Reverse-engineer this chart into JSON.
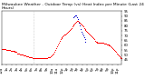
{
  "title": "Milwaukee Weather - Outdoor Temp (vs) Heat Index per Minute (Last 24 Hours)",
  "background_color": "#ffffff",
  "plot_bg_color": "#ffffff",
  "temp_color": "#ff0000",
  "heat_color": "#0000cc",
  "ylim": [
    40,
    95
  ],
  "yticks": [
    45,
    50,
    55,
    60,
    65,
    70,
    75,
    80,
    85,
    90,
    95
  ],
  "temp_values": [
    55,
    55,
    55,
    55,
    55,
    55,
    54,
    54,
    54,
    54,
    54,
    53,
    53,
    53,
    53,
    53,
    52,
    52,
    52,
    51,
    51,
    51,
    50,
    50,
    50,
    50,
    49,
    49,
    49,
    48,
    48,
    48,
    48,
    47,
    47,
    47,
    47,
    46,
    46,
    46,
    46,
    46,
    46,
    46,
    46,
    46,
    46,
    46,
    46,
    46,
    46,
    46,
    46,
    46,
    46,
    47,
    47,
    47,
    47,
    48,
    49,
    50,
    51,
    52,
    54,
    56,
    58,
    60,
    62,
    64,
    65,
    66,
    67,
    68,
    69,
    70,
    70,
    71,
    72,
    73,
    74,
    75,
    76,
    77,
    78,
    79,
    80,
    81,
    82,
    83,
    84,
    84,
    83,
    82,
    81,
    80,
    79,
    78,
    77,
    76,
    75,
    74,
    73,
    72,
    71,
    70,
    69,
    68,
    67,
    66,
    65,
    64,
    63,
    63,
    62,
    62,
    62,
    62,
    62,
    62,
    62,
    62,
    61,
    61,
    61,
    60,
    60,
    60,
    59,
    59,
    58,
    57,
    56,
    55,
    54,
    53,
    52,
    51,
    50,
    49,
    48,
    47,
    46,
    46
  ],
  "heat_values": [
    null,
    null,
    null,
    null,
    null,
    null,
    null,
    null,
    null,
    null,
    null,
    null,
    null,
    null,
    null,
    null,
    null,
    null,
    null,
    null,
    null,
    null,
    null,
    null,
    null,
    null,
    null,
    null,
    null,
    null,
    null,
    null,
    null,
    null,
    null,
    null,
    null,
    null,
    null,
    null,
    null,
    null,
    null,
    null,
    null,
    null,
    null,
    null,
    null,
    null,
    null,
    null,
    null,
    null,
    null,
    null,
    null,
    null,
    null,
    null,
    null,
    null,
    null,
    null,
    null,
    null,
    null,
    null,
    null,
    null,
    null,
    null,
    null,
    null,
    null,
    null,
    null,
    null,
    null,
    null,
    null,
    null,
    null,
    null,
    null,
    null,
    88,
    89,
    90,
    90,
    88,
    86,
    82,
    79,
    76,
    73,
    71,
    69,
    67,
    65,
    63,
    null,
    null,
    null,
    null,
    null,
    null,
    null,
    null,
    null,
    null,
    null,
    null,
    null,
    null,
    null,
    null,
    null,
    null,
    null,
    null,
    null,
    null,
    null,
    null,
    null,
    null,
    null,
    null,
    null,
    null,
    null,
    null,
    null,
    null,
    null,
    null,
    null,
    null,
    null,
    null,
    null,
    null,
    null
  ],
  "vline_x": 38,
  "n_points": 144,
  "title_fontsize": 3.2,
  "tick_fontsize": 2.8,
  "marker_size": 0.8
}
